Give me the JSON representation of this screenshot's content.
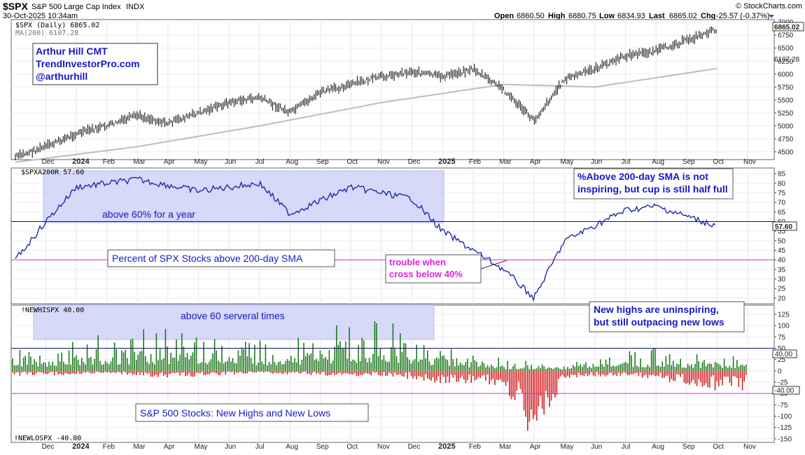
{
  "header": {
    "symbol": "$SPX",
    "name": "S&P 500 Large Cap Index",
    "exchange": "INDX",
    "date": "30-Oct-2025 10:34am",
    "brand": "© StockCharts.com",
    "ohlc": {
      "open_label": "Open",
      "open": "6860.50",
      "high_label": "High",
      "high": "6880.75",
      "low_label": "Low",
      "low": "6834.93",
      "last_label": "Last",
      "last": "6865.02",
      "chg_label": "Chg",
      "chg": "-25.57 (-0.37%)"
    }
  },
  "colors": {
    "price": "#000000",
    "sma": "#bdbdbd",
    "pct": "#1f2aa6",
    "box": "#cfd3f7",
    "highs": "#1e7a1e",
    "lows": "#d42020",
    "magenta": "#e21fe2",
    "navy": "#141470"
  },
  "x_axis": {
    "labels": [
      "Dec",
      "2024",
      "Feb",
      "Mar",
      "Apr",
      "May",
      "Jun",
      "Jul",
      "Aug",
      "Sep",
      "Oct",
      "Nov",
      "Dec",
      "2025",
      "Feb",
      "Mar",
      "Apr",
      "May",
      "Jun",
      "Jul",
      "Aug",
      "Sep",
      "Oct",
      "Nov"
    ],
    "bold": [
      "2024",
      "2025"
    ]
  },
  "panels": [
    {
      "id": "price",
      "legend": [
        "$SPX (Daily) 6865.02",
        "MA(200) 6107.28"
      ],
      "ticks": [
        4500,
        4750,
        5000,
        5250,
        5500,
        5750,
        6000,
        6250,
        6500,
        6750,
        7000
      ],
      "ylim": [
        4350,
        7050
      ],
      "last_label": "6865.02",
      "sma_label": "6107.28",
      "annotations": [
        "Arthur Hill CMT",
        "TrendInvestorPro.com",
        "@arthurhill"
      ]
    },
    {
      "id": "pct",
      "legend": [
        "$SPXA200R 57.60"
      ],
      "ticks": [
        20,
        25,
        30,
        35,
        40,
        45,
        50,
        55,
        60,
        65,
        70,
        75,
        80,
        85
      ],
      "ylim": [
        17,
        88
      ],
      "last_label": "57.60",
      "ref_lines": [
        60,
        40
      ],
      "annotations": {
        "box_text": "above 60% for a year",
        "title": "Percent of SPX Stocks above 200-day SMA",
        "trouble_line1": "trouble when",
        "trouble_line2": "cross below 40%",
        "top_right_line1": "%Above 200-day SMA is not",
        "top_right_line2": "inspiring, but cup is still half full"
      }
    },
    {
      "id": "nhnl",
      "legend_top": "!NEWHISPX 40.00",
      "legend_bottom": "!NEWLOSPX -40.00",
      "ticks": [
        -150,
        -125,
        -100,
        -75,
        -50,
        -25,
        0,
        25,
        50,
        75,
        100,
        125
      ],
      "ylim": [
        -158,
        145
      ],
      "ref_labels": [
        "40.00",
        "-40.00"
      ],
      "ref_lines": [
        50,
        -50
      ],
      "annotations": {
        "box_text": "above 60 serveral times",
        "title": "S&P 500 Stocks: New Highs and New Lows",
        "right_line1": "New highs are uninspiring,",
        "right_line2": "but still outpacing new lows"
      }
    }
  ],
  "chart_data": [
    {
      "type": "line",
      "title": "$SPX (Daily)",
      "series": [
        {
          "name": "$SPX (Daily)",
          "x": [
            "2023-11",
            "2023-12",
            "2024-01",
            "2024-02",
            "2024-03",
            "2024-04",
            "2024-05",
            "2024-06",
            "2024-07",
            "2024-08",
            "2024-09",
            "2024-10",
            "2024-11",
            "2024-12",
            "2025-01",
            "2025-02",
            "2025-03",
            "2025-04",
            "2025-05",
            "2025-06",
            "2025-07",
            "2025-08",
            "2025-09",
            "2025-10"
          ],
          "values": [
            4400,
            4600,
            4850,
            5000,
            5200,
            5050,
            5250,
            5450,
            5550,
            5250,
            5650,
            5800,
            5950,
            6050,
            5950,
            6100,
            5700,
            5100,
            5900,
            6100,
            6350,
            6450,
            6650,
            6865
          ]
        },
        {
          "name": "MA(200)",
          "x": [
            "2023-11",
            "2024-03",
            "2024-07",
            "2024-11",
            "2025-03",
            "2025-06",
            "2025-10"
          ],
          "values": [
            4300,
            4600,
            5000,
            5450,
            5800,
            5750,
            6107
          ]
        }
      ],
      "ylim": [
        4350,
        7050
      ]
    },
    {
      "type": "line",
      "title": "$SPXA200R",
      "series": [
        {
          "name": "$SPXA200R",
          "x": [
            "2023-11",
            "2023-12",
            "2024-01",
            "2024-03",
            "2024-05",
            "2024-07",
            "2024-08",
            "2024-10",
            "2024-12",
            "2025-01",
            "2025-03",
            "2025-04",
            "2025-05",
            "2025-07",
            "2025-08",
            "2025-10"
          ],
          "values": [
            40,
            60,
            78,
            82,
            76,
            80,
            64,
            78,
            72,
            55,
            35,
            20,
            50,
            66,
            68,
            57.6
          ]
        }
      ],
      "ref_lines": [
        60,
        40
      ],
      "ylim": [
        17,
        88
      ]
    },
    {
      "type": "bar",
      "title": "!NEWHISPX / !NEWLOSPX",
      "series": [
        {
          "name": "!NEWHISPX",
          "x": [
            "2023-12",
            "2024-02",
            "2024-04",
            "2024-07",
            "2024-09",
            "2024-11",
            "2025-01",
            "2025-03",
            "2025-05",
            "2025-07",
            "2025-09",
            "2025-10"
          ],
          "values": [
            60,
            85,
            100,
            80,
            95,
            130,
            70,
            25,
            20,
            55,
            45,
            40
          ]
        },
        {
          "name": "!NEWLOSPX",
          "x": [
            "2023-12",
            "2024-02",
            "2024-04",
            "2024-07",
            "2024-09",
            "2024-11",
            "2025-01",
            "2025-03",
            "2025-04",
            "2025-05",
            "2025-07",
            "2025-10"
          ],
          "values": [
            -10,
            -5,
            -15,
            -5,
            -10,
            -10,
            -25,
            -30,
            -150,
            -15,
            -10,
            -40
          ]
        }
      ],
      "ref_lines": [
        50,
        -50
      ],
      "ylim": [
        -158,
        145
      ]
    }
  ]
}
